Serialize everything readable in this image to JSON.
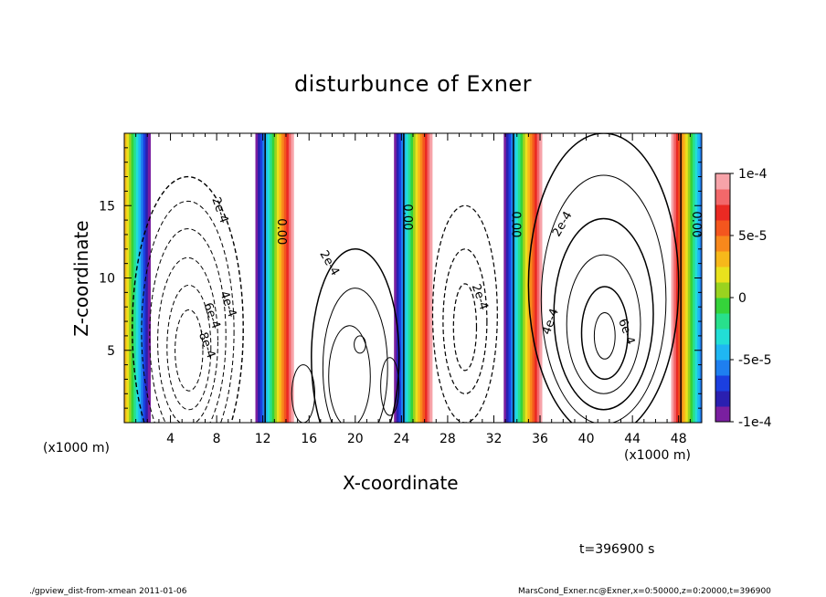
{
  "chart_data": {
    "type": "heatmap",
    "title": "disturbunce of Exner",
    "xlabel": "X-coordinate",
    "ylabel": "Z-coordinate",
    "x_unit_left": "(x1000 m)",
    "x_unit_right": "(x1000 m)",
    "xlim": [
      0,
      50
    ],
    "ylim": [
      0,
      20
    ],
    "x_ticks": [
      "4",
      "8",
      "12",
      "16",
      "20",
      "24",
      "28",
      "32",
      "36",
      "40",
      "44",
      "48"
    ],
    "x_tick_values": [
      4,
      8,
      12,
      16,
      20,
      24,
      28,
      32,
      36,
      40,
      44,
      48
    ],
    "y_ticks": [
      "5",
      "10",
      "15"
    ],
    "y_tick_values": [
      5,
      10,
      15
    ],
    "colorbar": {
      "labels": [
        "1e-4",
        "5e-5",
        "0",
        "-5e-5",
        "-1e-4"
      ],
      "label_values": [
        0.0001,
        5e-05,
        0,
        -5e-05,
        -0.0001
      ],
      "range": [
        -0.0001,
        0.0001
      ],
      "colors": [
        "#7a1fa0",
        "#2a1fb0",
        "#1b3fe0",
        "#1e7ff0",
        "#1fb7f2",
        "#22ded6",
        "#28e08c",
        "#35d33a",
        "#9ad31f",
        "#e9e21d",
        "#f7b81a",
        "#f8881c",
        "#f4561e",
        "#ea2a23",
        "#f2686a",
        "#f7a3a9"
      ]
    },
    "bands": [
      {
        "x": 0.6,
        "top": 0.0001,
        "bottom": 0.0001
      },
      {
        "x": 13.0,
        "top": 0.0001,
        "bottom": 0.0001
      },
      {
        "x": 25.0,
        "top": 0.0001,
        "bottom": 0.0001
      },
      {
        "x": 34.5,
        "top": 0.0001,
        "bottom": 0.0001
      },
      {
        "x": 49.0,
        "top": 0.0001,
        "bottom": 0.0001
      }
    ],
    "contour_labels": [
      {
        "text": "2e-4",
        "x": 8.0,
        "y": 14.6,
        "rotate": 70
      },
      {
        "text": "4e-4",
        "x": 8.7,
        "y": 8.1,
        "rotate": 70
      },
      {
        "text": "6e-4",
        "x": 7.3,
        "y": 7.3,
        "rotate": 70
      },
      {
        "text": "-8e-4",
        "x": 6.8,
        "y": 5.4,
        "rotate": 70
      },
      {
        "text": "0.00",
        "x": 13.3,
        "y": 13.2,
        "rotate": 90
      },
      {
        "text": "2e-4",
        "x": 17.5,
        "y": 10.9,
        "rotate": 60
      },
      {
        "text": "0.00",
        "x": 24.2,
        "y": 14.2,
        "rotate": 90
      },
      {
        "text": "2e-4",
        "x": 30.5,
        "y": 8.6,
        "rotate": 70
      },
      {
        "text": "0.00",
        "x": 33.6,
        "y": 13.7,
        "rotate": 90
      },
      {
        "text": "2e-4",
        "x": 38.2,
        "y": 13.6,
        "rotate": -60
      },
      {
        "text": "4e-4",
        "x": 37.2,
        "y": 6.9,
        "rotate": -70
      },
      {
        "text": "6e-4",
        "x": 43.2,
        "y": 6.2,
        "rotate": 70
      },
      {
        "text": "0.00",
        "x": 49.2,
        "y": 13.7,
        "rotate": 90
      }
    ]
  },
  "time_label": "t=396900 s",
  "footer": {
    "left": "./gpview_dist-from-xmean  2011-01-06",
    "right": "MarsCond_Exner.nc@Exner,x=0:50000,z=0:20000,t=396900"
  }
}
